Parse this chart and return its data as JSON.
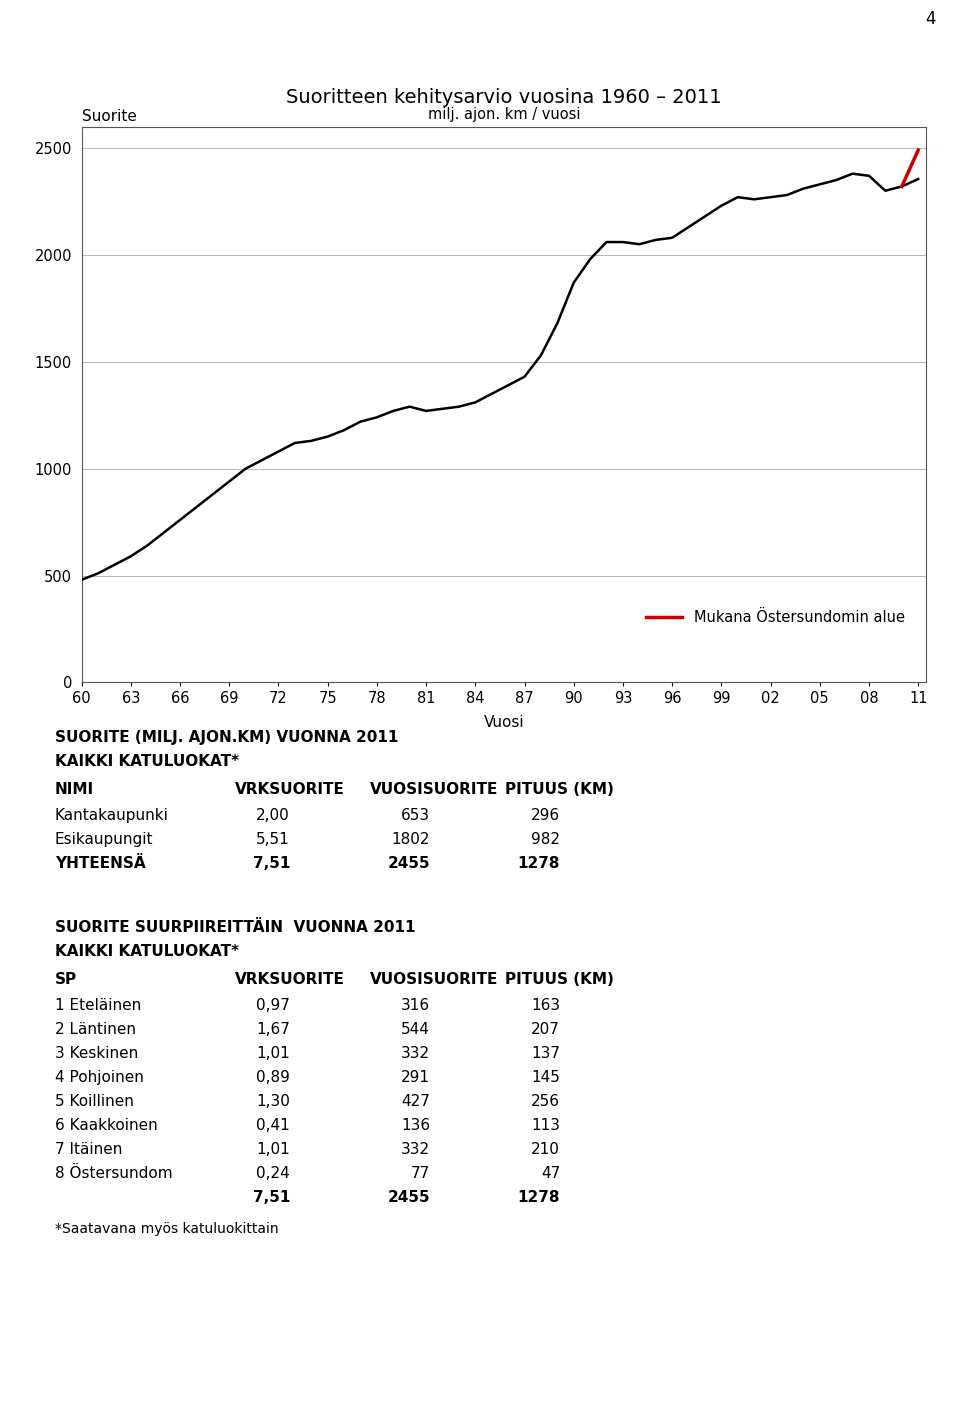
{
  "title": "Suoritteen kehitysarvio vuosina 1960 – 2011",
  "subtitle": "milj. ajon. km / vuosi",
  "ylabel": "Suorite",
  "xlabel": "Vuosi",
  "page_number": "4",
  "legend_label": "Mukana Östersundomin alue",
  "years": [
    1960,
    1961,
    1962,
    1963,
    1964,
    1965,
    1966,
    1967,
    1968,
    1969,
    1970,
    1971,
    1972,
    1973,
    1974,
    1975,
    1976,
    1977,
    1978,
    1979,
    1980,
    1981,
    1982,
    1983,
    1984,
    1985,
    1986,
    1987,
    1988,
    1989,
    1990,
    1991,
    1992,
    1993,
    1994,
    1995,
    1996,
    1997,
    1998,
    1999,
    2000,
    2001,
    2002,
    2003,
    2004,
    2005,
    2006,
    2007,
    2008,
    2009,
    2010,
    2011
  ],
  "values": [
    480,
    510,
    550,
    590,
    640,
    700,
    760,
    820,
    880,
    940,
    1000,
    1040,
    1080,
    1120,
    1130,
    1150,
    1180,
    1220,
    1240,
    1270,
    1290,
    1270,
    1280,
    1290,
    1310,
    1350,
    1390,
    1430,
    1530,
    1680,
    1870,
    1980,
    2060,
    2060,
    2050,
    2070,
    2080,
    2130,
    2180,
    2230,
    2270,
    2260,
    2270,
    2280,
    2310,
    2330,
    2350,
    2380,
    2370,
    2300,
    2320,
    2355
  ],
  "red_segment_years": [
    2010,
    2011
  ],
  "red_segment_values": [
    2320,
    2490
  ],
  "yticks": [
    0,
    500,
    1000,
    1500,
    2000,
    2500
  ],
  "xtick_labels": [
    "60",
    "63",
    "66",
    "69",
    "72",
    "75",
    "78",
    "81",
    "84",
    "87",
    "90",
    "93",
    "96",
    "99",
    "02",
    "05",
    "08",
    "11"
  ],
  "xtick_years": [
    1960,
    1963,
    1966,
    1969,
    1972,
    1975,
    1978,
    1981,
    1984,
    1987,
    1990,
    1993,
    1996,
    1999,
    2002,
    2005,
    2008,
    2011
  ],
  "ylim": [
    0,
    2600
  ],
  "table1_title1": "SUORITE (MILJ. AJON.KM) VUONNA 2011",
  "table1_title2": "KAIKKI KATULUOKAT*",
  "table1_header": [
    "NIMI",
    "VRKSUORITE",
    "VUOSISUORITE",
    "PITUUS (KM)"
  ],
  "table1_rows": [
    [
      "Kantakaupunki",
      "2,00",
      "653",
      "296"
    ],
    [
      "Esikaupungit",
      "5,51",
      "1802",
      "982"
    ],
    [
      "YHTEENSÄ",
      "7,51",
      "2455",
      "1278"
    ]
  ],
  "table2_title1": "SUORITE SUURPIIREITTÄIN  VUONNA 2011",
  "table2_title2": "KAIKKI KATULUOKAT*",
  "table2_header": [
    "SP",
    "VRKSUORITE",
    "VUOSISUORITE",
    "PITUUS (KM)"
  ],
  "table2_rows": [
    [
      "1 Eteläinen",
      "0,97",
      "316",
      "163"
    ],
    [
      "2 Läntinen",
      "1,67",
      "544",
      "207"
    ],
    [
      "3 Keskinen",
      "1,01",
      "332",
      "137"
    ],
    [
      "4 Pohjoinen",
      "0,89",
      "291",
      "145"
    ],
    [
      "5 Koillinen",
      "1,30",
      "427",
      "256"
    ],
    [
      "6 Kaakkoinen",
      "0,41",
      "136",
      "113"
    ],
    [
      "7 Itäinen",
      "1,01",
      "332",
      "210"
    ],
    [
      "8 Östersundom",
      "0,24",
      "77",
      "47"
    ],
    [
      "",
      "7,51",
      "2455",
      "1278"
    ]
  ],
  "footnote": "*Saatavana myös katuluokittain",
  "bg_color": "#ffffff",
  "line_color": "#000000",
  "red_color": "#cc0000"
}
